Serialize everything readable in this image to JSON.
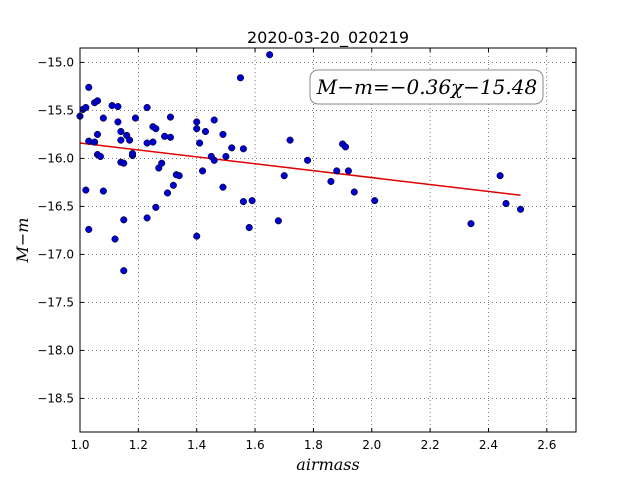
{
  "chart_data": {
    "type": "scatter",
    "title": "2020-03-20_020219",
    "xlabel": "airmass",
    "ylabel": "M−m",
    "xlim": [
      1.0,
      2.7
    ],
    "ylim": [
      -18.85,
      -14.85
    ],
    "y_inverted": true,
    "grid": true,
    "x_ticks": [
      1.0,
      1.2,
      1.4,
      1.6,
      1.8,
      2.0,
      2.2,
      2.4,
      2.6
    ],
    "x_tick_labels": [
      "1.0",
      "1.2",
      "1.4",
      "1.6",
      "1.8",
      "2.0",
      "2.2",
      "2.4",
      "2.6"
    ],
    "y_ticks": [
      -15.0,
      -15.5,
      -16.0,
      -16.5,
      -17.0,
      -17.5,
      -18.0,
      -18.5
    ],
    "y_tick_labels": [
      "−15.0",
      "−15.5",
      "−16.0",
      "−16.5",
      "−17.0",
      "−17.5",
      "−18.0",
      "−18.5"
    ],
    "annotation": "M−m=−0.36χ−15.48",
    "fit": {
      "slope": -0.36,
      "intercept": -15.48,
      "x_range": [
        1.0,
        2.51
      ],
      "color": "#e00000"
    },
    "point_color": "#0000cc",
    "points": [
      [
        1.0,
        -15.56
      ],
      [
        1.01,
        -15.49
      ],
      [
        1.02,
        -15.47
      ],
      [
        1.03,
        -15.26
      ],
      [
        1.02,
        -16.33
      ],
      [
        1.03,
        -16.74
      ],
      [
        1.03,
        -15.82
      ],
      [
        1.05,
        -15.83
      ],
      [
        1.05,
        -15.42
      ],
      [
        1.06,
        -15.4
      ],
      [
        1.06,
        -15.75
      ],
      [
        1.06,
        -15.96
      ],
      [
        1.07,
        -15.98
      ],
      [
        1.08,
        -15.58
      ],
      [
        1.08,
        -16.34
      ],
      [
        1.11,
        -15.45
      ],
      [
        1.12,
        -16.84
      ],
      [
        1.13,
        -15.46
      ],
      [
        1.13,
        -15.62
      ],
      [
        1.14,
        -15.72
      ],
      [
        1.14,
        -15.81
      ],
      [
        1.14,
        -16.04
      ],
      [
        1.15,
        -16.05
      ],
      [
        1.15,
        -16.64
      ],
      [
        1.15,
        -17.17
      ],
      [
        1.16,
        -15.76
      ],
      [
        1.17,
        -15.81
      ],
      [
        1.18,
        -15.97
      ],
      [
        1.18,
        -15.95
      ],
      [
        1.19,
        -15.58
      ],
      [
        1.23,
        -15.47
      ],
      [
        1.23,
        -15.84
      ],
      [
        1.23,
        -16.62
      ],
      [
        1.25,
        -15.83
      ],
      [
        1.25,
        -15.67
      ],
      [
        1.26,
        -15.69
      ],
      [
        1.26,
        -16.51
      ],
      [
        1.27,
        -16.1
      ],
      [
        1.28,
        -16.05
      ],
      [
        1.29,
        -15.77
      ],
      [
        1.3,
        -16.36
      ],
      [
        1.31,
        -15.57
      ],
      [
        1.31,
        -15.78
      ],
      [
        1.32,
        -16.28
      ],
      [
        1.33,
        -16.17
      ],
      [
        1.34,
        -16.18
      ],
      [
        1.4,
        -15.62
      ],
      [
        1.4,
        -15.69
      ],
      [
        1.4,
        -16.81
      ],
      [
        1.41,
        -15.84
      ],
      [
        1.42,
        -16.13
      ],
      [
        1.43,
        -15.72
      ],
      [
        1.45,
        -15.98
      ],
      [
        1.46,
        -16.02
      ],
      [
        1.46,
        -15.6
      ],
      [
        1.49,
        -15.75
      ],
      [
        1.49,
        -16.3
      ],
      [
        1.5,
        -15.98
      ],
      [
        1.52,
        -15.89
      ],
      [
        1.55,
        -15.16
      ],
      [
        1.56,
        -15.9
      ],
      [
        1.56,
        -16.45
      ],
      [
        1.58,
        -16.72
      ],
      [
        1.59,
        -16.44
      ],
      [
        1.65,
        -14.92
      ],
      [
        1.68,
        -16.65
      ],
      [
        1.7,
        -16.18
      ],
      [
        1.72,
        -15.81
      ],
      [
        1.78,
        -16.02
      ],
      [
        1.86,
        -16.24
      ],
      [
        1.88,
        -16.13
      ],
      [
        1.9,
        -15.85
      ],
      [
        1.91,
        -15.88
      ],
      [
        1.92,
        -16.13
      ],
      [
        1.94,
        -16.35
      ],
      [
        2.01,
        -16.44
      ],
      [
        2.34,
        -16.68
      ],
      [
        2.44,
        -16.18
      ],
      [
        2.46,
        -16.47
      ],
      [
        2.51,
        -16.53
      ]
    ]
  }
}
